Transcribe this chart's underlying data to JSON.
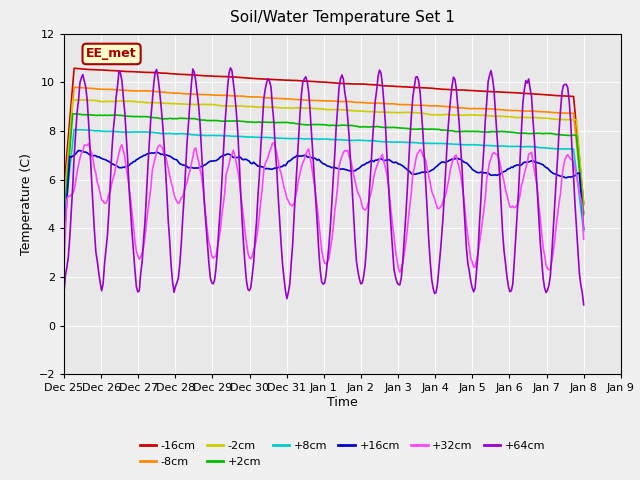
{
  "title": "Soil/Water Temperature Set 1",
  "xlabel": "Time",
  "ylabel": "Temperature (C)",
  "ylim": [
    -2,
    12
  ],
  "xlim": [
    0,
    336
  ],
  "annotation_text": "EE_met",
  "annotation_bg": "#ffffcc",
  "annotation_border": "#aa0000",
  "xtick_labels": [
    "Dec 25",
    "Dec 26",
    "Dec 27",
    "Dec 28",
    "Dec 29",
    "Dec 30",
    "Dec 31",
    "Jan 1",
    "Jan 2",
    "Jan 3",
    "Jan 4",
    "Jan 5",
    "Jan 6",
    "Jan 7",
    "Jan 8",
    "Jan 9"
  ],
  "xtick_positions": [
    0,
    24,
    48,
    72,
    96,
    120,
    144,
    168,
    192,
    216,
    240,
    264,
    288,
    312,
    336,
    360
  ],
  "yticks": [
    -2,
    0,
    2,
    4,
    6,
    8,
    10,
    12
  ],
  "series_colors": {
    "-16cm": "#cc0000",
    "-8cm": "#ff8800",
    "-2cm": "#cccc00",
    "+2cm": "#00bb00",
    "+8cm": "#00cccc",
    "+16cm": "#0000cc",
    "+32cm": "#ff44ff",
    "+64cm": "#9900cc"
  }
}
